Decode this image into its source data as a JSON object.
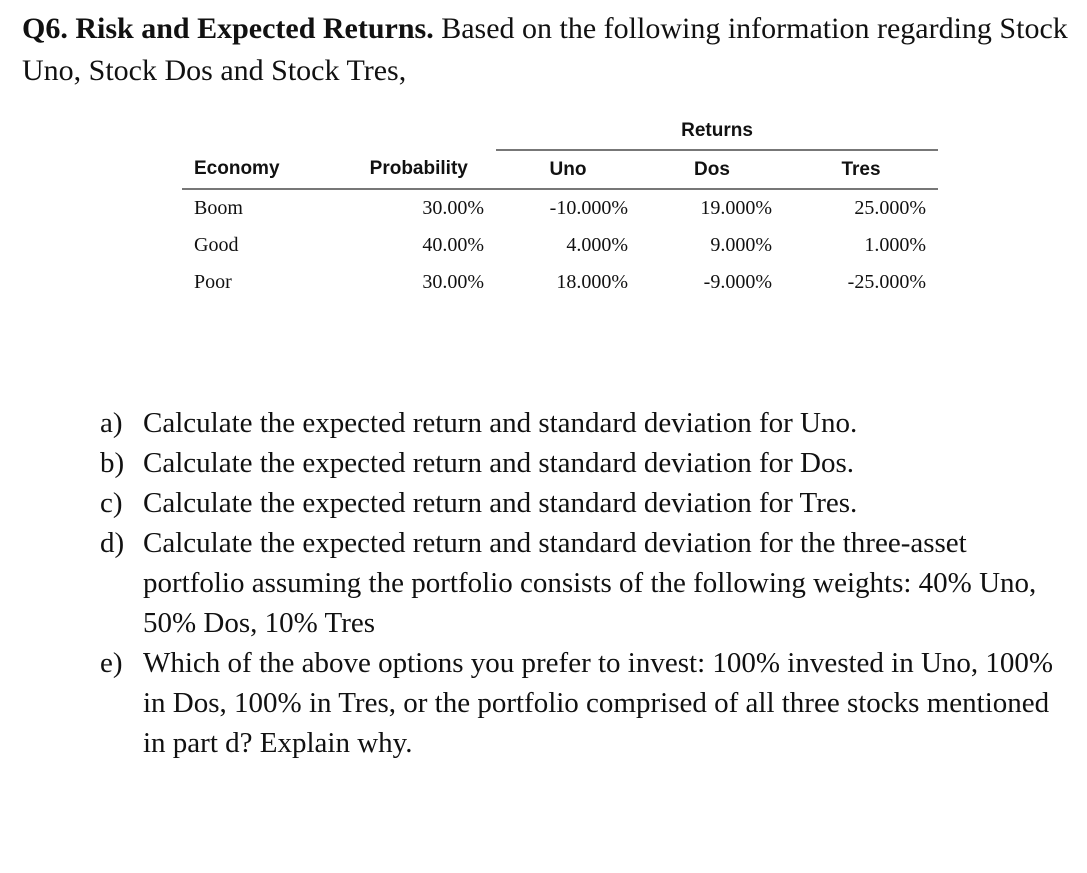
{
  "question": {
    "title": "Q6. Risk and Expected Returns.",
    "intro": " Based on the following information regarding Stock Uno, Stock Dos and Stock Tres,"
  },
  "table": {
    "group_header": "Returns",
    "headers": [
      "Economy",
      "Probability",
      "Uno",
      "Dos",
      "Tres"
    ],
    "rows": [
      [
        "Boom",
        "30.00%",
        "-10.000%",
        "19.000%",
        "25.000%"
      ],
      [
        "Good",
        "40.00%",
        "4.000%",
        "9.000%",
        "1.000%"
      ],
      [
        "Poor",
        "30.00%",
        "18.000%",
        "-9.000%",
        "-25.000%"
      ]
    ]
  },
  "parts": [
    {
      "label": "a)",
      "text": "Calculate the expected return and standard deviation for Uno."
    },
    {
      "label": "b)",
      "text": "Calculate the expected return and standard deviation for Dos."
    },
    {
      "label": "c)",
      "text": "Calculate the expected return and standard deviation for Tres."
    },
    {
      "label": "d)",
      "text": "Calculate the expected return and standard deviation for the three-asset portfolio assuming the portfolio consists of the following weights:  40% Uno, 50% Dos, 10% Tres"
    },
    {
      "label": "e)",
      "text": "Which of the above options you prefer to invest: 100% invested in Uno, 100% in Dos, 100% in Tres, or the portfolio comprised of all three stocks mentioned in part d?  Explain why."
    }
  ]
}
